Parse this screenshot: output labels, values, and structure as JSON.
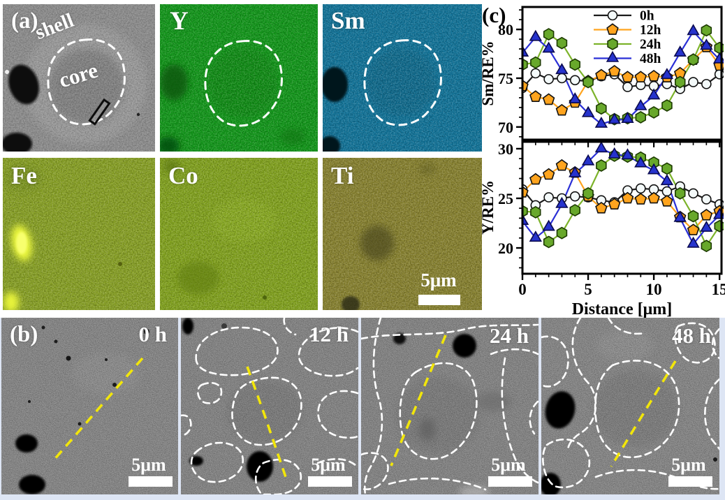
{
  "panel_a": {
    "label": "(a)",
    "annotations": {
      "shell": "shell",
      "core": "core"
    },
    "scale_bar_label": "5μm",
    "tiles": [
      {
        "name": "sem-overview",
        "label": "(a)",
        "base_color": "#8f8f8f"
      },
      {
        "name": "map-Y",
        "label": "Y",
        "base_color": "#12991a"
      },
      {
        "name": "map-Sm",
        "label": "Sm",
        "base_color": "#11759b"
      },
      {
        "name": "map-Fe",
        "label": "Fe",
        "base_color": "#8aa325"
      },
      {
        "name": "map-Co",
        "label": "Co",
        "base_color": "#84a51e"
      },
      {
        "name": "map-Ti",
        "label": "Ti",
        "base_color": "#8a8430"
      }
    ]
  },
  "panel_b": {
    "label": "(b)",
    "images": [
      {
        "time_label": "0 h",
        "scale_bar": "5μm"
      },
      {
        "time_label": "12 h",
        "scale_bar": "5μm"
      },
      {
        "time_label": "24 h",
        "scale_bar": "5μm"
      },
      {
        "time_label": "48 h",
        "scale_bar": "5μm"
      }
    ]
  },
  "panel_c": {
    "label": "(c)"
  },
  "chart_data": [
    {
      "type": "line",
      "title": "",
      "ylabel": "Sm/RE%",
      "xlabel": "",
      "x": [
        0,
        1,
        2,
        3,
        4,
        5,
        6,
        7,
        8,
        9,
        10,
        11,
        12,
        13,
        14,
        15
      ],
      "xlim": [
        0,
        15.15
      ],
      "ylim": [
        68.7,
        82.3
      ],
      "yticks": [
        70,
        75,
        80
      ],
      "xticks": [
        0,
        5,
        10,
        15
      ],
      "grid": false,
      "legend_position": "top-right",
      "show_legend": true,
      "series": [
        {
          "name": "0h",
          "line_color": "#1a1a1a",
          "marker": "circle",
          "marker_fill": "#f4fafa",
          "marker_edge": "#111111",
          "values": [
            74.0,
            75.5,
            74.9,
            75.0,
            74.8,
            74.7,
            75.2,
            75.4,
            74.1,
            74.3,
            74.2,
            74.4,
            73.9,
            74.6,
            74.4,
            75.4
          ]
        },
        {
          "name": "12h",
          "line_color": "#ffa41e",
          "marker": "pentagon",
          "marker_fill": "#ffa41e",
          "marker_edge": "#111111",
          "values": [
            74.2,
            73.1,
            72.8,
            71.7,
            72.5,
            74.7,
            75.3,
            75.7,
            75.1,
            75.1,
            75.2,
            75.1,
            75.5,
            76.9,
            78.2,
            76.3
          ]
        },
        {
          "name": "24h",
          "line_color": "#7cb32a",
          "marker": "hexagon",
          "marker_fill": "#68a82b",
          "marker_edge": "#1c3a00",
          "values": [
            76.4,
            76.6,
            79.5,
            78.6,
            76.4,
            74.6,
            71.9,
            70.8,
            70.9,
            71.0,
            71.5,
            72.2,
            74.6,
            76.9,
            79.9,
            78.1
          ]
        },
        {
          "name": "48h",
          "line_color": "#2a2fd6",
          "marker": "triangle",
          "marker_fill": "#2633cd",
          "marker_edge": "#0a0a50",
          "values": [
            77.6,
            79.2,
            78.0,
            75.8,
            72.8,
            71.4,
            70.3,
            70.7,
            70.8,
            72.1,
            73.2,
            75.3,
            77.6,
            79.8,
            78.3,
            76.9
          ]
        }
      ]
    },
    {
      "type": "line",
      "title": "",
      "ylabel": "Y/RE%",
      "xlabel": "Distance [μm]",
      "x": [
        0,
        1,
        2,
        3,
        4,
        5,
        6,
        7,
        8,
        9,
        10,
        11,
        12,
        13,
        14,
        15
      ],
      "xlim": [
        0,
        15.15
      ],
      "ylim": [
        17.4,
        30.7
      ],
      "yticks": [
        20,
        25,
        30
      ],
      "xticks": [
        0,
        5,
        10,
        15
      ],
      "grid": false,
      "show_legend": false,
      "series": [
        {
          "name": "0h",
          "line_color": "#1a1a1a",
          "marker": "circle",
          "marker_fill": "#f4fafa",
          "marker_edge": "#111111",
          "values": [
            25.9,
            24.3,
            25.1,
            25.0,
            25.2,
            25.1,
            24.8,
            24.6,
            25.8,
            26.0,
            25.9,
            25.7,
            26.2,
            25.5,
            24.9,
            24.4
          ]
        },
        {
          "name": "12h",
          "line_color": "#ffa41e",
          "marker": "pentagon",
          "marker_fill": "#ffa41e",
          "marker_edge": "#111111",
          "values": [
            25.6,
            26.9,
            27.4,
            28.3,
            27.6,
            25.2,
            24.0,
            24.4,
            25.0,
            24.9,
            25.0,
            24.7,
            23.1,
            21.8,
            23.3,
            23.7
          ]
        },
        {
          "name": "24h",
          "line_color": "#7cb32a",
          "marker": "hexagon",
          "marker_fill": "#68a82b",
          "marker_edge": "#1c3a00",
          "values": [
            23.7,
            23.6,
            20.6,
            21.5,
            23.8,
            25.5,
            28.3,
            29.3,
            29.2,
            29.1,
            28.6,
            28.0,
            25.5,
            23.2,
            20.2,
            22.2
          ]
        },
        {
          "name": "48h",
          "line_color": "#2a2fd6",
          "marker": "triangle",
          "marker_fill": "#2633cd",
          "marker_edge": "#0a0a50",
          "values": [
            22.7,
            21.0,
            22.1,
            24.4,
            27.5,
            28.7,
            30.0,
            29.4,
            29.3,
            28.5,
            27.8,
            26.7,
            23.0,
            20.4,
            22.0,
            23.3
          ]
        }
      ]
    }
  ],
  "colors": {
    "grain_outline": "#ffffff",
    "scan_line": "#f2e60a",
    "background_strip": "#dde5f4"
  }
}
